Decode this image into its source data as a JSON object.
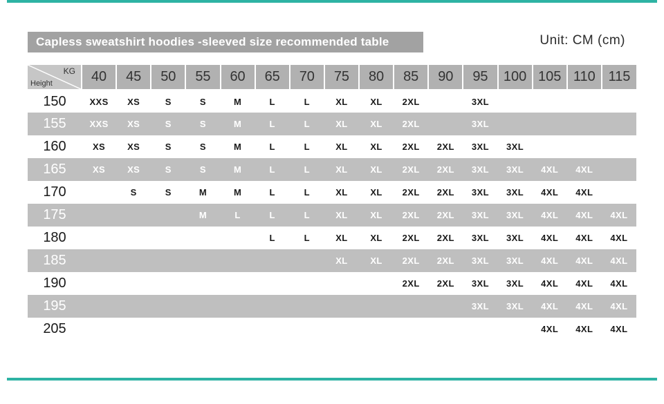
{
  "page": {
    "title": "Capless sweatshirt hoodies -sleeved size recommended table",
    "unit_label": "Unit: CM (cm)",
    "colors": {
      "accent_teal": "#2eb3a4",
      "title_bar_bg": "#a2a2a2",
      "header_cell_bg": "#b1b1b1",
      "stripe_row_bg": "#bfbfbf",
      "stripe_text": "#ffffff",
      "plain_text": "#1a1a1a"
    }
  },
  "chart_data": {
    "type": "table",
    "title": "Capless sweatshirt hoodies -sleeved size recommended table",
    "unit": "CM (cm)",
    "column_header_unit": "KG",
    "row_header_unit": "Height",
    "weight_columns_kg": [
      "40",
      "45",
      "50",
      "55",
      "60",
      "65",
      "70",
      "75",
      "80",
      "85",
      "90",
      "95",
      "100",
      "105",
      "110",
      "115"
    ],
    "rows": [
      {
        "height": "150",
        "sizes": [
          "XXS",
          "XS",
          "S",
          "S",
          "M",
          "L",
          "L",
          "XL",
          "XL",
          "2XL",
          "",
          "3XL",
          "",
          "",
          "",
          ""
        ]
      },
      {
        "height": "155",
        "sizes": [
          "XXS",
          "XS",
          "S",
          "S",
          "M",
          "L",
          "L",
          "XL",
          "XL",
          "2XL",
          "",
          "3XL",
          "",
          "",
          "",
          ""
        ]
      },
      {
        "height": "160",
        "sizes": [
          "XS",
          "XS",
          "S",
          "S",
          "M",
          "L",
          "L",
          "XL",
          "XL",
          "2XL",
          "2XL",
          "3XL",
          "3XL",
          "",
          "",
          ""
        ]
      },
      {
        "height": "165",
        "sizes": [
          "XS",
          "XS",
          "S",
          "S",
          "M",
          "L",
          "L",
          "XL",
          "XL",
          "2XL",
          "2XL",
          "3XL",
          "3XL",
          "4XL",
          "4XL",
          ""
        ]
      },
      {
        "height": "170",
        "sizes": [
          "",
          "S",
          "S",
          "M",
          "M",
          "L",
          "L",
          "XL",
          "XL",
          "2XL",
          "2XL",
          "3XL",
          "3XL",
          "4XL",
          "4XL",
          ""
        ]
      },
      {
        "height": "175",
        "sizes": [
          "",
          "",
          "",
          "M",
          "L",
          "L",
          "L",
          "XL",
          "XL",
          "2XL",
          "2XL",
          "3XL",
          "3XL",
          "4XL",
          "4XL",
          "4XL"
        ]
      },
      {
        "height": "180",
        "sizes": [
          "",
          "",
          "",
          "",
          "",
          "L",
          "L",
          "XL",
          "XL",
          "2XL",
          "2XL",
          "3XL",
          "3XL",
          "4XL",
          "4XL",
          "4XL"
        ]
      },
      {
        "height": "185",
        "sizes": [
          "",
          "",
          "",
          "",
          "",
          "",
          "",
          "XL",
          "XL",
          "2XL",
          "2XL",
          "3XL",
          "3XL",
          "4XL",
          "4XL",
          "4XL"
        ]
      },
      {
        "height": "190",
        "sizes": [
          "",
          "",
          "",
          "",
          "",
          "",
          "",
          "",
          "",
          "2XL",
          "2XL",
          "3XL",
          "3XL",
          "4XL",
          "4XL",
          "4XL"
        ]
      },
      {
        "height": "195",
        "sizes": [
          "",
          "",
          "",
          "",
          "",
          "",
          "",
          "",
          "",
          "",
          "",
          "3XL",
          "3XL",
          "4XL",
          "4XL",
          "4XL"
        ]
      },
      {
        "height": "205",
        "sizes": [
          "",
          "",
          "",
          "",
          "",
          "",
          "",
          "",
          "",
          "",
          "",
          "",
          "",
          "4XL",
          "4XL",
          "4XL"
        ]
      }
    ]
  }
}
